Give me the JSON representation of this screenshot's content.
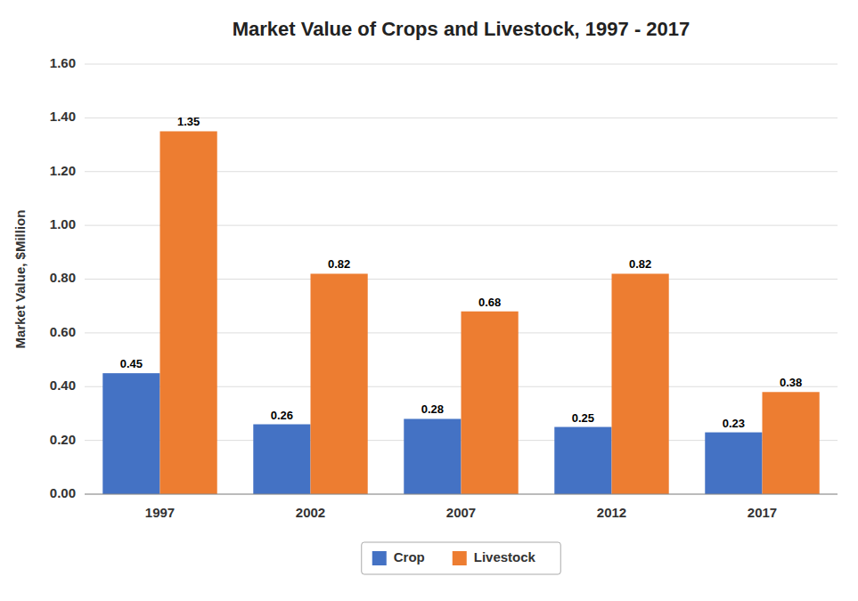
{
  "chart_data": {
    "type": "bar",
    "title": "Market Value of Crops and Livestock, 1997 - 2017",
    "ylabel": "Market Value, $Million",
    "categories": [
      "1997",
      "2002",
      "2007",
      "2012",
      "2017"
    ],
    "series": [
      {
        "name": "Crop",
        "color": "#4472C4",
        "values": [
          0.45,
          0.26,
          0.28,
          0.25,
          0.23
        ]
      },
      {
        "name": "Livestock",
        "color": "#ED7D31",
        "values": [
          1.35,
          0.82,
          0.68,
          0.82,
          0.38
        ]
      }
    ],
    "ylim": [
      0,
      1.6
    ],
    "yticks": [
      {
        "value": 0.0,
        "label": "0.00"
      },
      {
        "value": 0.2,
        "label": "0.20"
      },
      {
        "value": 0.4,
        "label": "0.40"
      },
      {
        "value": 0.6,
        "label": "0.60"
      },
      {
        "value": 0.8,
        "label": "0.80"
      },
      {
        "value": 1.0,
        "label": "1.00"
      },
      {
        "value": 1.2,
        "label": "1.20"
      },
      {
        "value": 1.4,
        "label": "1.40"
      },
      {
        "value": 1.6,
        "label": "1.60"
      }
    ],
    "grid": true,
    "data_labels": true,
    "legend": "bottom"
  }
}
